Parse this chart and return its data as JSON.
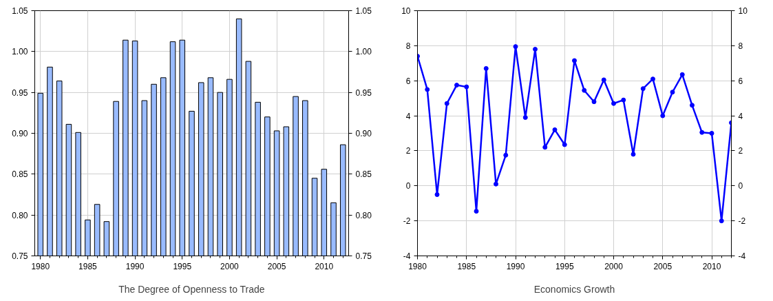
{
  "chart_data": [
    {
      "type": "bar",
      "xlabel": "The Degree of Openness to Trade",
      "x": [
        1980,
        1981,
        1982,
        1983,
        1984,
        1985,
        1986,
        1987,
        1988,
        1989,
        1990,
        1991,
        1992,
        1993,
        1994,
        1995,
        1996,
        1997,
        1998,
        1999,
        2000,
        2001,
        2002,
        2003,
        2004,
        2005,
        2006,
        2007,
        2008,
        2009,
        2010,
        2011,
        2012
      ],
      "series": [
        {
          "color": "#99bbff",
          "values": [
            0.949,
            0.981,
            0.964,
            0.911,
            0.901,
            0.794,
            0.813,
            0.792,
            0.939,
            1.014,
            1.013,
            0.94,
            0.96,
            0.968,
            1.012,
            1.014,
            0.927,
            0.962,
            0.968,
            0.95,
            0.966,
            1.04,
            0.988,
            0.938,
            0.92,
            0.903,
            0.908,
            0.945,
            0.94,
            0.845,
            0.856,
            0.815,
            0.886
          ]
        }
      ],
      "xlim": [
        1979.4,
        2012.6
      ],
      "xticks": [
        1980,
        1985,
        1990,
        1995,
        2000,
        2005,
        2010
      ],
      "ylim": [
        0.75,
        1.05
      ],
      "yticks": [
        {
          "value": 0.75,
          "label": "0.75"
        },
        {
          "value": 0.8,
          "label": "0.80"
        },
        {
          "value": 0.85,
          "label": "0.85"
        },
        {
          "value": 0.9,
          "label": "0.90"
        },
        {
          "value": 0.95,
          "label": "0.95"
        },
        {
          "value": 1.0,
          "label": "1.00"
        },
        {
          "value": 1.05,
          "label": "1.05"
        }
      ],
      "y2lim": [
        0.75,
        1.05
      ],
      "y2ticks": [
        {
          "value": 0.75,
          "label": "0.75"
        },
        {
          "value": 0.8,
          "label": "0.80"
        },
        {
          "value": 0.85,
          "label": "0.85"
        },
        {
          "value": 0.9,
          "label": "0.90"
        },
        {
          "value": 0.95,
          "label": "0.95"
        },
        {
          "value": 1.0,
          "label": "1.00"
        },
        {
          "value": 1.05,
          "label": "1.05"
        }
      ],
      "grid": true
    },
    {
      "type": "line",
      "xlabel": "Economics Growth",
      "x": [
        1980,
        1981,
        1982,
        1983,
        1984,
        1985,
        1986,
        1987,
        1988,
        1989,
        1990,
        1991,
        1992,
        1993,
        1994,
        1995,
        1996,
        1997,
        1998,
        1999,
        2000,
        2001,
        2002,
        2003,
        2004,
        2005,
        2006,
        2007,
        2008,
        2009,
        2010,
        2011,
        2012
      ],
      "series": [
        {
          "color": "#0000ff",
          "values": [
            7.4,
            5.5,
            -0.5,
            4.7,
            5.75,
            5.65,
            -1.45,
            6.7,
            0.1,
            1.75,
            7.95,
            3.9,
            7.8,
            2.2,
            3.2,
            2.35,
            7.15,
            5.45,
            4.8,
            6.05,
            4.7,
            4.9,
            1.8,
            5.55,
            6.1,
            4.0,
            5.35,
            6.35,
            4.6,
            3.05,
            3.0,
            -2.0,
            3.6
          ]
        }
      ],
      "xlim": [
        1980,
        2012
      ],
      "xticks": [
        1980,
        1985,
        1990,
        1995,
        2000,
        2005,
        2010
      ],
      "ylim": [
        -4,
        10
      ],
      "yticks": [
        -4,
        -2,
        0,
        2,
        4,
        6,
        8,
        10
      ],
      "y2lim": [
        -4,
        10
      ],
      "y2ticks": [
        -4,
        -2,
        0,
        2,
        4,
        6,
        8,
        10
      ],
      "grid": true,
      "marker": "circle",
      "line_style": "solid"
    }
  ]
}
